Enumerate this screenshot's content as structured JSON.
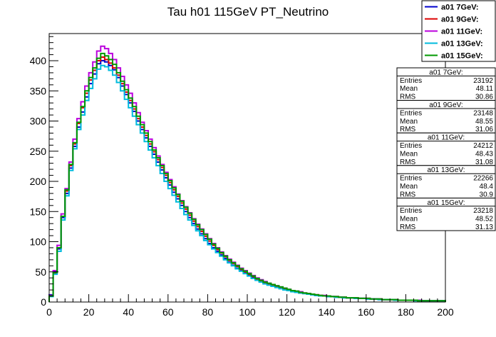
{
  "chart_data": {
    "type": "line",
    "title": "Tau h01 115GeV PT_Neutrino",
    "xlabel": "",
    "ylabel": "",
    "xlim": [
      0,
      200
    ],
    "ylim": [
      0,
      445
    ],
    "x_ticks": [
      0,
      20,
      40,
      60,
      80,
      100,
      120,
      140,
      160,
      180,
      200
    ],
    "y_ticks": [
      0,
      50,
      100,
      150,
      200,
      250,
      300,
      350,
      400
    ],
    "grid": false,
    "legend_position": "top-right",
    "bin_width": 2,
    "bin_centers": [
      1,
      3,
      5,
      7,
      9,
      11,
      13,
      15,
      17,
      19,
      21,
      23,
      25,
      27,
      29,
      31,
      33,
      35,
      37,
      39,
      41,
      43,
      45,
      47,
      49,
      51,
      53,
      55,
      57,
      59,
      61,
      63,
      65,
      67,
      69,
      71,
      73,
      75,
      77,
      79,
      81,
      83,
      85,
      87,
      89,
      91,
      93,
      95,
      97,
      99,
      101,
      103,
      105,
      107,
      109,
      111,
      113,
      115,
      117,
      119,
      121,
      123,
      125,
      127,
      129,
      131,
      133,
      135,
      137,
      139,
      141,
      143,
      145,
      147,
      149,
      151,
      153,
      155,
      157,
      159,
      161,
      163,
      165,
      167,
      169,
      171,
      173,
      175,
      177,
      179,
      181,
      183,
      185,
      187,
      189,
      191,
      193,
      195,
      197,
      199
    ],
    "series": [
      {
        "name": "a01 7GeV:",
        "color": "#0000cc",
        "values": [
          12,
          50,
          88,
          140,
          180,
          222,
          258,
          290,
          315,
          340,
          362,
          378,
          395,
          400,
          398,
          392,
          385,
          372,
          358,
          344,
          330,
          316,
          300,
          286,
          272,
          258,
          245,
          232,
          219,
          206,
          194,
          182,
          171,
          160,
          150,
          140,
          130,
          121,
          113,
          105,
          97,
          90,
          84,
          78,
          72,
          66,
          61,
          56,
          52,
          48,
          44,
          40,
          37,
          34,
          31,
          29,
          27,
          25,
          23,
          21,
          19,
          18,
          16,
          15,
          14,
          13,
          12,
          11,
          10,
          10,
          9,
          9,
          8,
          8,
          7,
          7,
          7,
          6,
          6,
          6,
          5,
          5,
          5,
          4,
          4,
          4,
          4,
          3,
          3,
          3,
          3,
          3,
          3,
          2,
          2,
          2,
          2,
          2,
          2,
          2
        ]
      },
      {
        "name": "a01 9GeV:",
        "color": "#dd0000",
        "values": [
          10,
          48,
          90,
          142,
          184,
          226,
          262,
          296,
          322,
          346,
          368,
          384,
          400,
          406,
          402,
          396,
          388,
          376,
          362,
          348,
          334,
          320,
          304,
          290,
          276,
          262,
          249,
          236,
          223,
          210,
          198,
          186,
          175,
          164,
          154,
          144,
          134,
          125,
          117,
          109,
          101,
          94,
          87,
          81,
          75,
          69,
          64,
          59,
          54,
          50,
          46,
          42,
          38,
          35,
          32,
          30,
          28,
          26,
          24,
          22,
          20,
          19,
          17,
          16,
          15,
          14,
          13,
          12,
          11,
          10,
          10,
          9,
          9,
          8,
          8,
          7,
          7,
          7,
          6,
          6,
          6,
          5,
          5,
          5,
          4,
          4,
          4,
          4,
          3,
          3,
          3,
          3,
          3,
          2,
          2,
          2,
          2,
          2,
          2,
          2
        ]
      },
      {
        "name": "a01 11GeV:",
        "color": "#bb00dd",
        "values": [
          11,
          52,
          94,
          146,
          188,
          232,
          270,
          304,
          332,
          358,
          380,
          398,
          416,
          424,
          420,
          412,
          402,
          388,
          374,
          360,
          346,
          330,
          314,
          298,
          284,
          270,
          256,
          242,
          228,
          215,
          203,
          191,
          179,
          168,
          158,
          148,
          138,
          129,
          121,
          113,
          105,
          97,
          90,
          83,
          77,
          71,
          66,
          61,
          56,
          52,
          48,
          44,
          40,
          37,
          34,
          31,
          29,
          27,
          25,
          23,
          21,
          19,
          18,
          17,
          15,
          14,
          13,
          12,
          11,
          11,
          10,
          9,
          9,
          8,
          8,
          7,
          7,
          7,
          6,
          6,
          6,
          5,
          5,
          5,
          4,
          4,
          4,
          4,
          3,
          3,
          3,
          3,
          3,
          3,
          2,
          2,
          2,
          2,
          2,
          2
        ]
      },
      {
        "name": "a01 13GeV:",
        "color": "#00bbdd",
        "values": [
          9,
          46,
          84,
          136,
          176,
          218,
          254,
          286,
          310,
          334,
          354,
          370,
          386,
          392,
          390,
          384,
          376,
          364,
          350,
          336,
          322,
          308,
          294,
          280,
          266,
          252,
          239,
          226,
          213,
          200,
          188,
          177,
          166,
          155,
          145,
          136,
          127,
          118,
          110,
          102,
          95,
          88,
          82,
          76,
          70,
          65,
          60,
          55,
          51,
          47,
          43,
          39,
          36,
          33,
          30,
          28,
          26,
          24,
          22,
          20,
          19,
          17,
          16,
          15,
          14,
          13,
          12,
          11,
          10,
          10,
          9,
          9,
          8,
          8,
          7,
          7,
          7,
          6,
          6,
          6,
          5,
          5,
          5,
          4,
          4,
          4,
          4,
          3,
          3,
          3,
          3,
          3,
          2,
          2,
          2,
          2,
          2,
          2,
          2,
          2
        ]
      },
      {
        "name": "a01 15GeV:",
        "color": "#009900",
        "values": [
          10,
          49,
          90,
          142,
          186,
          228,
          264,
          298,
          324,
          350,
          372,
          388,
          404,
          412,
          408,
          402,
          394,
          380,
          366,
          352,
          338,
          324,
          308,
          294,
          280,
          266,
          252,
          239,
          226,
          213,
          201,
          189,
          178,
          167,
          157,
          147,
          137,
          128,
          120,
          112,
          104,
          96,
          89,
          82,
          76,
          70,
          65,
          60,
          55,
          51,
          47,
          43,
          39,
          36,
          33,
          31,
          29,
          27,
          25,
          23,
          21,
          19,
          18,
          16,
          15,
          14,
          13,
          12,
          11,
          10,
          10,
          9,
          9,
          8,
          8,
          7,
          7,
          7,
          6,
          6,
          6,
          5,
          5,
          5,
          4,
          4,
          4,
          4,
          3,
          3,
          3,
          3,
          3,
          2,
          2,
          2,
          2,
          2,
          2,
          2
        ]
      }
    ],
    "stats": [
      {
        "title": "a01 7GeV:",
        "rows": [
          {
            "label": "Entries",
            "value": "23192"
          },
          {
            "label": "Mean",
            "value": "48.11"
          },
          {
            "label": "RMS",
            "value": "30.86"
          }
        ]
      },
      {
        "title": "a01 9GeV:",
        "rows": [
          {
            "label": "Entries",
            "value": "23148"
          },
          {
            "label": "Mean",
            "value": "48.55"
          },
          {
            "label": "RMS",
            "value": "31.06"
          }
        ]
      },
      {
        "title": "a01 11GeV:",
        "rows": [
          {
            "label": "Entries",
            "value": "24212"
          },
          {
            "label": "Mean",
            "value": "48.43"
          },
          {
            "label": "RMS",
            "value": "31.08"
          }
        ]
      },
      {
        "title": "a01 13GeV:",
        "rows": [
          {
            "label": "Entries",
            "value": "22266"
          },
          {
            "label": "Mean",
            "value": "48.4"
          },
          {
            "label": "RMS",
            "value": "30.9"
          }
        ]
      },
      {
        "title": "a01 15GeV:",
        "rows": [
          {
            "label": "Entries",
            "value": "23218"
          },
          {
            "label": "Mean",
            "value": "48.52"
          },
          {
            "label": "RMS",
            "value": "31.13"
          }
        ]
      }
    ]
  }
}
